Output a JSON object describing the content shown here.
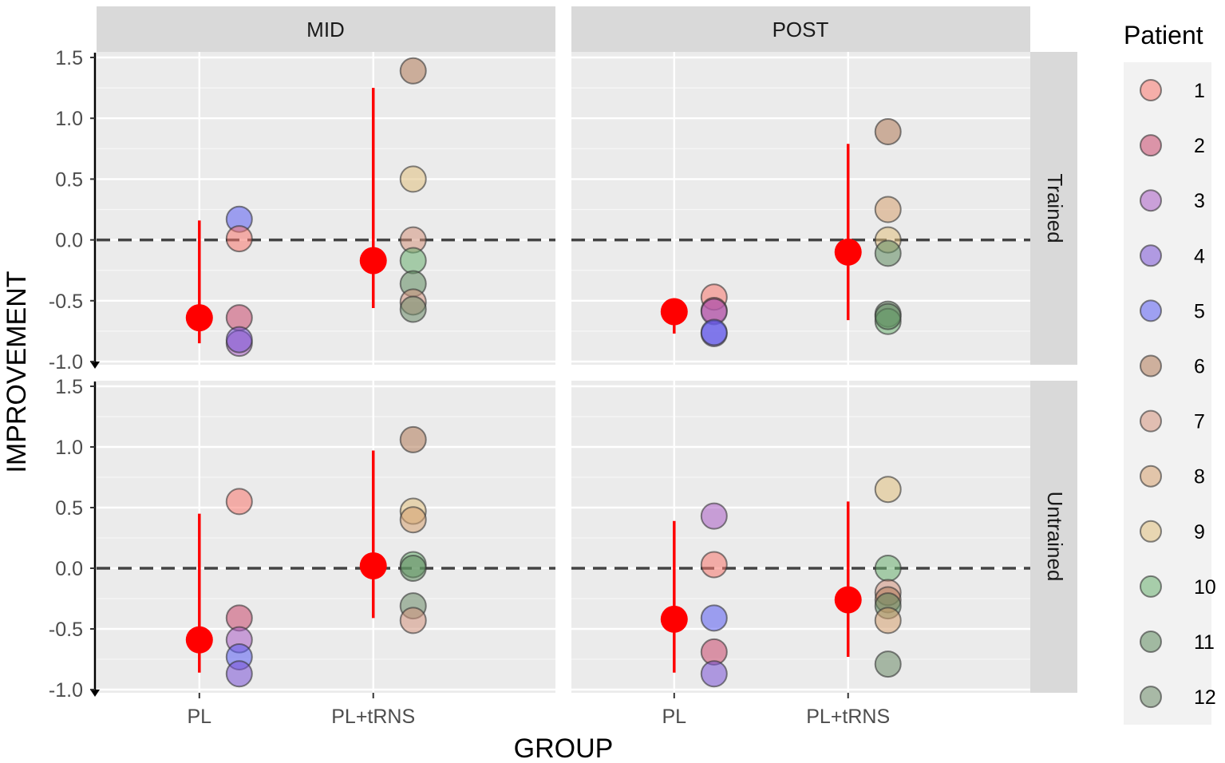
{
  "chart_data": {
    "type": "scatter",
    "xlabel": "GROUP",
    "ylabel": "IMPROVEMENT",
    "ylim": [
      -1.0,
      1.5
    ],
    "yticks": [
      -1.0,
      -0.5,
      0.0,
      0.5,
      1.0,
      1.5
    ],
    "ytick_labels": [
      "-1.0",
      "-0.5",
      "0.0",
      "0.5",
      "1.0",
      "1.5"
    ],
    "categories": [
      "PL",
      "PL+tRNS"
    ],
    "reference_line": 0.0,
    "column_facets": [
      "MID",
      "POST"
    ],
    "row_facets": [
      "Trained",
      "Untrained"
    ],
    "legend": {
      "title": "Patient",
      "position": "right",
      "entries": [
        {
          "label": "1",
          "color": "#f8766d"
        },
        {
          "label": "2",
          "color": "#c9476b"
        },
        {
          "label": "3",
          "color": "#a95cc4"
        },
        {
          "label": "4",
          "color": "#7a52d6"
        },
        {
          "label": "5",
          "color": "#5a5cf2"
        },
        {
          "label": "6",
          "color": "#b07a58"
        },
        {
          "label": "7",
          "color": "#d4947e"
        },
        {
          "label": "8",
          "color": "#d6a070"
        },
        {
          "label": "9",
          "color": "#e0c07e"
        },
        {
          "label": "10",
          "color": "#6aae70"
        },
        {
          "label": "11",
          "color": "#5e8a5e"
        },
        {
          "label": "12",
          "color": "#6b8a68"
        }
      ]
    },
    "summary_color": "#ff0000",
    "panels": [
      {
        "col": "MID",
        "row": "Trained",
        "summary": [
          {
            "group": "PL",
            "mean": -0.64,
            "low": -0.85,
            "high": 0.16
          },
          {
            "group": "PL+tRNS",
            "mean": -0.17,
            "low": -0.56,
            "high": 1.25
          }
        ],
        "points": [
          {
            "group": "PL",
            "patient": "5",
            "y": 0.17
          },
          {
            "group": "PL",
            "patient": "1",
            "y": 0.01
          },
          {
            "group": "PL",
            "patient": "2",
            "y": -0.64
          },
          {
            "group": "PL",
            "patient": "3",
            "y": -0.85
          },
          {
            "group": "PL",
            "patient": "4",
            "y": -0.82
          },
          {
            "group": "PL+tRNS",
            "patient": "6",
            "y": 1.39
          },
          {
            "group": "PL+tRNS",
            "patient": "9",
            "y": 0.5
          },
          {
            "group": "PL+tRNS",
            "patient": "7",
            "y": 0.0
          },
          {
            "group": "PL+tRNS",
            "patient": "10",
            "y": -0.17
          },
          {
            "group": "PL+tRNS",
            "patient": "11",
            "y": -0.36
          },
          {
            "group": "PL+tRNS",
            "patient": "7",
            "y": -0.51
          },
          {
            "group": "PL+tRNS",
            "patient": "12",
            "y": -0.57
          }
        ]
      },
      {
        "col": "POST",
        "row": "Trained",
        "summary": [
          {
            "group": "PL",
            "mean": -0.59,
            "low": -0.77,
            "high": -0.48
          },
          {
            "group": "PL+tRNS",
            "mean": -0.1,
            "low": -0.66,
            "high": 0.79
          }
        ],
        "points": [
          {
            "group": "PL",
            "patient": "1",
            "y": -0.47
          },
          {
            "group": "PL",
            "patient": "2",
            "y": -0.58
          },
          {
            "group": "PL",
            "patient": "3",
            "y": -0.59
          },
          {
            "group": "PL",
            "patient": "4",
            "y": -0.77
          },
          {
            "group": "PL",
            "patient": "5",
            "y": -0.76
          },
          {
            "group": "PL+tRNS",
            "patient": "6",
            "y": 0.89
          },
          {
            "group": "PL+tRNS",
            "patient": "8",
            "y": 0.25
          },
          {
            "group": "PL+tRNS",
            "patient": "9",
            "y": 0.0
          },
          {
            "group": "PL+tRNS",
            "patient": "11",
            "y": -0.11
          },
          {
            "group": "PL+tRNS",
            "patient": "12",
            "y": -0.61
          },
          {
            "group": "PL+tRNS",
            "patient": "10",
            "y": -0.67
          },
          {
            "group": "PL+tRNS",
            "patient": "11",
            "y": -0.63
          }
        ]
      },
      {
        "col": "MID",
        "row": "Untrained",
        "summary": [
          {
            "group": "PL",
            "mean": -0.59,
            "low": -0.86,
            "high": 0.45
          },
          {
            "group": "PL+tRNS",
            "mean": 0.02,
            "low": -0.41,
            "high": 0.97
          }
        ],
        "points": [
          {
            "group": "PL",
            "patient": "1",
            "y": 0.55
          },
          {
            "group": "PL",
            "patient": "2",
            "y": -0.41
          },
          {
            "group": "PL",
            "patient": "3",
            "y": -0.59
          },
          {
            "group": "PL",
            "patient": "5",
            "y": -0.73
          },
          {
            "group": "PL",
            "patient": "4",
            "y": -0.87
          },
          {
            "group": "PL+tRNS",
            "patient": "6",
            "y": 1.06
          },
          {
            "group": "PL+tRNS",
            "patient": "9",
            "y": 0.47
          },
          {
            "group": "PL+tRNS",
            "patient": "8",
            "y": 0.4
          },
          {
            "group": "PL+tRNS",
            "patient": "10",
            "y": 0.03
          },
          {
            "group": "PL+tRNS",
            "patient": "11",
            "y": 0.0
          },
          {
            "group": "PL+tRNS",
            "patient": "12",
            "y": -0.31
          },
          {
            "group": "PL+tRNS",
            "patient": "7",
            "y": -0.43
          }
        ]
      },
      {
        "col": "POST",
        "row": "Untrained",
        "summary": [
          {
            "group": "PL",
            "mean": -0.42,
            "low": -0.86,
            "high": 0.39
          },
          {
            "group": "PL+tRNS",
            "mean": -0.26,
            "low": -0.73,
            "high": 0.55
          }
        ],
        "points": [
          {
            "group": "PL",
            "patient": "3",
            "y": 0.43
          },
          {
            "group": "PL",
            "patient": "1",
            "y": 0.03
          },
          {
            "group": "PL",
            "patient": "5",
            "y": -0.41
          },
          {
            "group": "PL",
            "patient": "2",
            "y": -0.69
          },
          {
            "group": "PL",
            "patient": "4",
            "y": -0.87
          },
          {
            "group": "PL+tRNS",
            "patient": "9",
            "y": 0.65
          },
          {
            "group": "PL+tRNS",
            "patient": "10",
            "y": 0.0
          },
          {
            "group": "PL+tRNS",
            "patient": "7",
            "y": -0.2
          },
          {
            "group": "PL+tRNS",
            "patient": "6",
            "y": -0.26
          },
          {
            "group": "PL+tRNS",
            "patient": "11",
            "y": -0.31
          },
          {
            "group": "PL+tRNS",
            "patient": "8",
            "y": -0.43
          },
          {
            "group": "PL+tRNS",
            "patient": "12",
            "y": -0.79
          }
        ]
      }
    ]
  }
}
